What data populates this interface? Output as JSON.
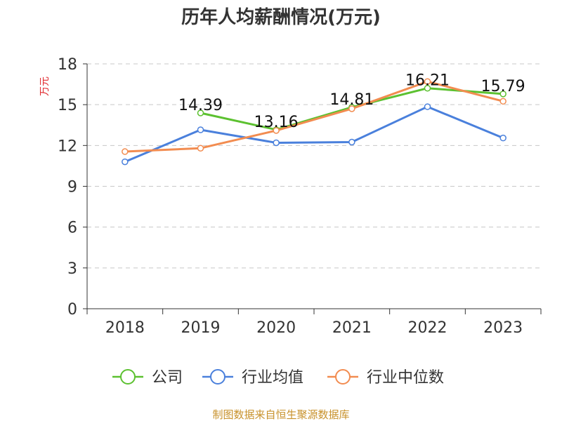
{
  "chart_data": {
    "type": "line",
    "title": "历年人均薪酬情况(万元)",
    "ylabel": "万元",
    "xlabel": "",
    "categories": [
      "2018",
      "2019",
      "2020",
      "2021",
      "2022",
      "2023"
    ],
    "ylim": [
      0,
      18
    ],
    "yticks": [
      0,
      3,
      6,
      9,
      12,
      15,
      18
    ],
    "grid": true,
    "legend_position": "bottom",
    "series": [
      {
        "name": "公司",
        "color": "#5cc130",
        "values": [
          null,
          14.39,
          13.16,
          14.81,
          16.21,
          15.79
        ],
        "labels": [
          null,
          "14.39",
          "13.16",
          "14.81",
          "16.21",
          "15.79"
        ]
      },
      {
        "name": "行业均值",
        "color": "#4a80dc",
        "values": [
          10.8,
          13.15,
          12.2,
          12.25,
          14.85,
          12.55
        ]
      },
      {
        "name": "行业中位数",
        "color": "#f28c50",
        "values": [
          11.55,
          11.8,
          13.1,
          14.7,
          16.7,
          15.25
        ]
      }
    ],
    "source": "制图数据来自恒生聚源数据库"
  }
}
